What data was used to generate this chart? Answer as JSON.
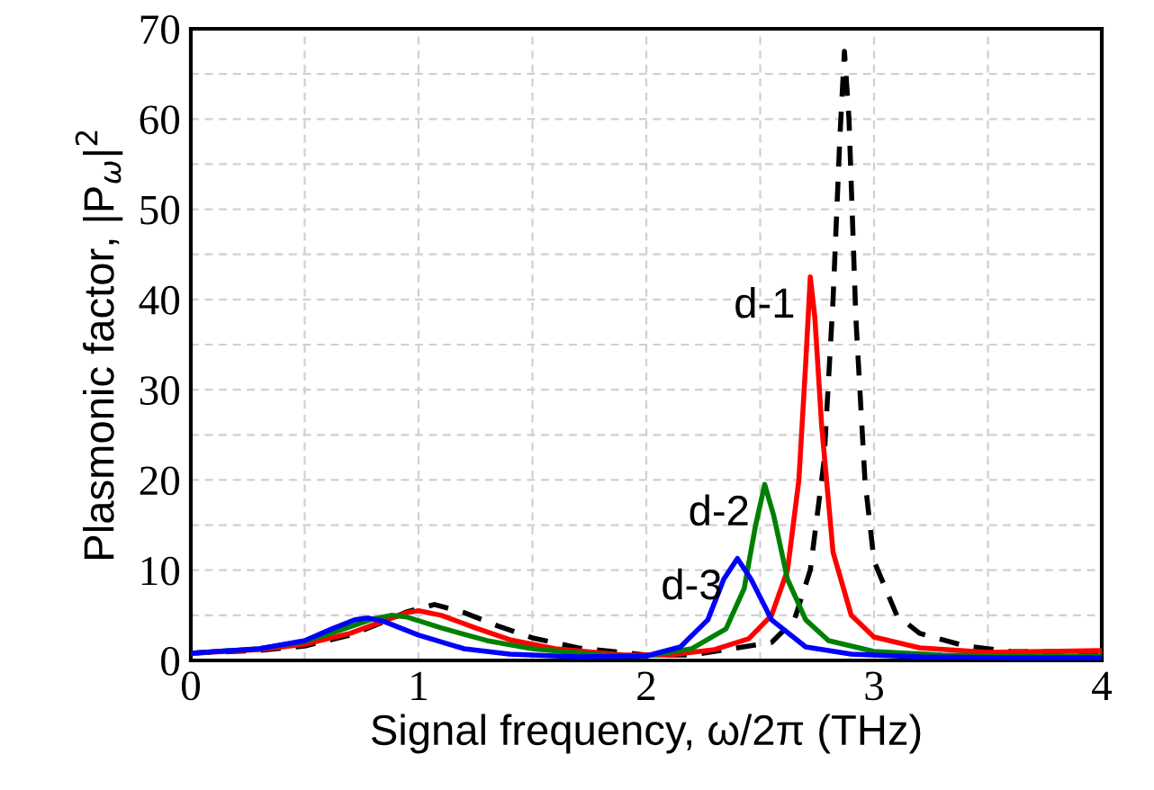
{
  "chart_data": {
    "type": "line",
    "xlabel": "Signal frequency, ω/2π (THz)",
    "ylabel": "Plasmonic factor, |P$_{ω}$|$^{2}$",
    "xlim": [
      0,
      4
    ],
    "ylim": [
      0,
      70
    ],
    "xticks": [
      0,
      {
        "value": 0.5,
        "label": null
      },
      1,
      {
        "value": 1.5,
        "label": null
      },
      2,
      {
        "value": 2.5,
        "label": null
      },
      3,
      {
        "value": 3.5,
        "label": null
      },
      4
    ],
    "yticks": [
      0,
      {
        "value": 5,
        "label": null
      },
      10,
      {
        "value": 15,
        "label": null
      },
      20,
      {
        "value": 25,
        "label": null
      },
      30,
      {
        "value": 35,
        "label": null
      },
      40,
      {
        "value": 45,
        "label": null
      },
      50,
      {
        "value": 55,
        "label": null
      },
      60,
      {
        "value": 65,
        "label": null
      },
      70
    ],
    "grid": true,
    "marker": "none",
    "series": [
      {
        "color": "#000000",
        "line_style": "dashed",
        "x": [
          0,
          0.3,
          0.5,
          0.7,
          0.85,
          0.95,
          1.07,
          1.2,
          1.35,
          1.5,
          1.7,
          2.0,
          2.2,
          2.4,
          2.55,
          2.65,
          2.72,
          2.78,
          2.82,
          2.85,
          2.87,
          2.89,
          2.92,
          2.96,
          3.0,
          3.1,
          3.2,
          3.4,
          3.6,
          4.0
        ],
        "values": [
          0.8,
          1.1,
          1.6,
          2.8,
          4.3,
          5.4,
          6.2,
          5.3,
          3.8,
          2.5,
          1.4,
          0.6,
          0.6,
          1.4,
          2.0,
          4.5,
          10,
          22,
          40,
          58,
          67.5,
          60,
          38,
          20,
          11,
          5,
          3,
          1.6,
          1.0,
          0.9
        ]
      },
      {
        "color": "#ff0000",
        "line_style": "solid",
        "x": [
          0,
          0.3,
          0.5,
          0.7,
          0.85,
          0.95,
          1.0,
          1.1,
          1.25,
          1.4,
          1.6,
          1.9,
          2.1,
          2.3,
          2.45,
          2.55,
          2.62,
          2.67,
          2.7,
          2.72,
          2.74,
          2.77,
          2.82,
          2.9,
          3.0,
          3.2,
          3.5,
          4.0
        ],
        "values": [
          0.8,
          1.2,
          1.8,
          3.0,
          4.4,
          5.3,
          5.5,
          5.0,
          3.6,
          2.3,
          1.3,
          0.6,
          0.6,
          1.2,
          2.4,
          5,
          10,
          20,
          33,
          42.5,
          38,
          26,
          12,
          5,
          2.6,
          1.4,
          0.9,
          1.1
        ]
      },
      {
        "color": "#008000",
        "line_style": "solid",
        "x": [
          0,
          0.3,
          0.5,
          0.65,
          0.8,
          0.88,
          0.95,
          1.1,
          1.3,
          1.5,
          1.8,
          2.0,
          2.2,
          2.35,
          2.43,
          2.48,
          2.52,
          2.56,
          2.62,
          2.7,
          2.8,
          3.0,
          3.3,
          3.6,
          4.0
        ],
        "values": [
          0.8,
          1.3,
          2.1,
          3.3,
          4.6,
          5.0,
          4.8,
          3.6,
          2.2,
          1.3,
          0.6,
          0.5,
          1.3,
          3.5,
          8,
          15,
          19.5,
          16,
          9,
          4.5,
          2.2,
          1.0,
          0.6,
          0.5,
          0.5
        ]
      },
      {
        "color": "#0000ff",
        "line_style": "solid",
        "x": [
          0,
          0.3,
          0.5,
          0.62,
          0.72,
          0.78,
          0.85,
          1.0,
          1.2,
          1.4,
          1.7,
          2.0,
          2.15,
          2.27,
          2.34,
          2.4,
          2.46,
          2.55,
          2.7,
          2.9,
          3.2,
          3.6,
          4.0
        ],
        "values": [
          0.8,
          1.3,
          2.2,
          3.5,
          4.5,
          4.7,
          4.3,
          2.8,
          1.3,
          0.7,
          0.4,
          0.5,
          1.5,
          4.5,
          9,
          11.3,
          9,
          4.5,
          1.5,
          0.7,
          0.4,
          0.3,
          0.3
        ]
      }
    ],
    "annotations": [
      {
        "text": "d-1",
        "x": 2.72,
        "y": 42.5
      },
      {
        "text": "d-2",
        "x": 2.52,
        "y": 19.5
      },
      {
        "text": "d-3",
        "x": 2.4,
        "y": 11.3
      }
    ]
  }
}
